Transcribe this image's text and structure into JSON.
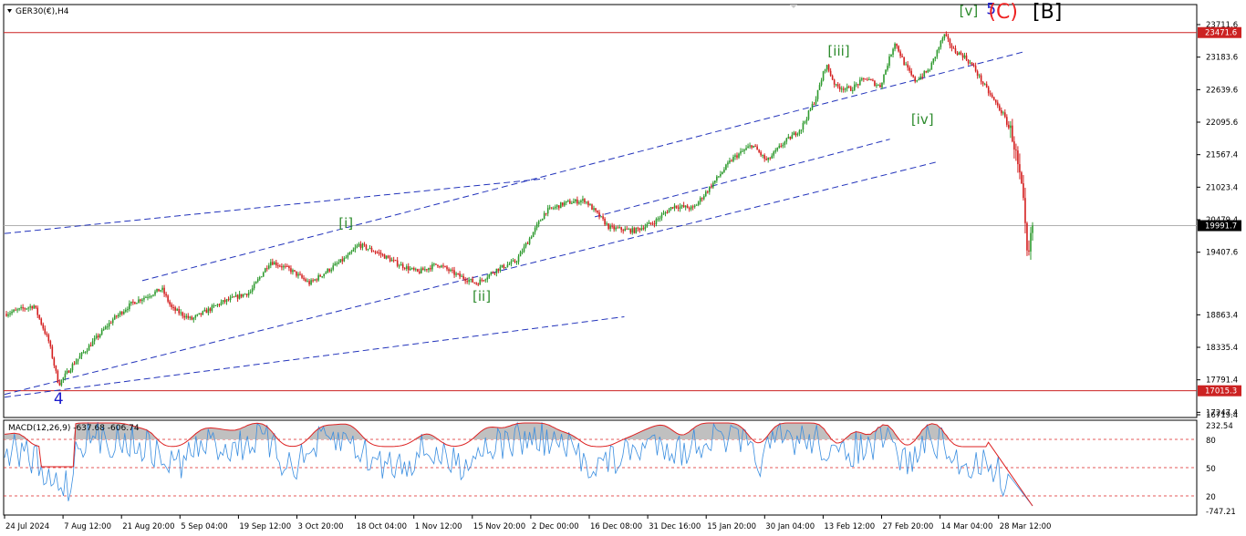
{
  "colors": {
    "bull": "#2e9a2e",
    "bear": "#d42020",
    "trend": "#2233bb",
    "hline": "#cc2222",
    "current_line": "#b0b0b0",
    "macd_line": "#3a8ee0",
    "signal_line": "#dd2222",
    "macd_hist": "#c0c0c0",
    "wave_green": "#2e8b2e",
    "wave_blue": "#1a1acc",
    "wave_red": "#ee2222"
  },
  "chart_data": [
    {
      "type": "candlestick",
      "title": "GER30(€),H4",
      "ylim": [
        16550,
        23960
      ],
      "x_ticks": [
        "24 Jul 2024",
        "7 Aug 12:00",
        "21 Aug 20:00",
        "5 Sep 04:00",
        "19 Sep 12:00",
        "3 Oct 20:00",
        "18 Oct 04:00",
        "1 Nov 12:00",
        "15 Nov 20:00",
        "2 Dec 00:00",
        "16 Dec 08:00",
        "31 Dec 16:00",
        "15 Jan 20:00",
        "30 Jan 04:00",
        "13 Feb 12:00",
        "27 Feb 20:00",
        "14 Mar 04:00",
        "28 Mar 12:00"
      ],
      "y_ticks": [
        "23711.6",
        "23183.6",
        "22639.6",
        "22095.6",
        "21567.4",
        "21023.4",
        "20479.4",
        "19407.6",
        "18863.4",
        "18335.4",
        "17791.4",
        "17247.4",
        "16719.4"
      ],
      "price_tags": [
        {
          "label": "23471.6",
          "value": 23471.6,
          "color": "#cc2222"
        },
        {
          "label": "19991.7",
          "value": 19991.7,
          "color": "#000000"
        },
        {
          "label": "17015.3",
          "value": 17015.3,
          "color": "#cc2222"
        }
      ],
      "horizontal_lines": [
        {
          "value": 23471.6,
          "color": "#cc2222"
        },
        {
          "value": 19991.7,
          "color": "#b0b0b0"
        },
        {
          "value": 17015.3,
          "color": "#cc2222"
        }
      ],
      "path_points": [
        {
          "t": 0.0,
          "v": 18400
        },
        {
          "t": 0.03,
          "v": 18550
        },
        {
          "t": 0.045,
          "v": 17900
        },
        {
          "t": 0.055,
          "v": 17130
        },
        {
          "t": 0.07,
          "v": 17500
        },
        {
          "t": 0.09,
          "v": 17900
        },
        {
          "t": 0.11,
          "v": 18300
        },
        {
          "t": 0.13,
          "v": 18600
        },
        {
          "t": 0.16,
          "v": 18850
        },
        {
          "t": 0.17,
          "v": 18500
        },
        {
          "t": 0.19,
          "v": 18300
        },
        {
          "t": 0.22,
          "v": 18600
        },
        {
          "t": 0.25,
          "v": 18800
        },
        {
          "t": 0.27,
          "v": 19350
        },
        {
          "t": 0.29,
          "v": 19200
        },
        {
          "t": 0.31,
          "v": 18950
        },
        {
          "t": 0.33,
          "v": 19200
        },
        {
          "t": 0.35,
          "v": 19450
        },
        {
          "t": 0.36,
          "v": 19650
        },
        {
          "t": 0.38,
          "v": 19500
        },
        {
          "t": 0.4,
          "v": 19300
        },
        {
          "t": 0.42,
          "v": 19150
        },
        {
          "t": 0.44,
          "v": 19300
        },
        {
          "t": 0.46,
          "v": 19100
        },
        {
          "t": 0.48,
          "v": 18950
        },
        {
          "t": 0.5,
          "v": 19200
        },
        {
          "t": 0.52,
          "v": 19350
        },
        {
          "t": 0.535,
          "v": 19800
        },
        {
          "t": 0.55,
          "v": 20250
        },
        {
          "t": 0.57,
          "v": 20400
        },
        {
          "t": 0.59,
          "v": 20450
        },
        {
          "t": 0.605,
          "v": 20150
        },
        {
          "t": 0.615,
          "v": 19950
        },
        {
          "t": 0.64,
          "v": 19900
        },
        {
          "t": 0.66,
          "v": 20050
        },
        {
          "t": 0.68,
          "v": 20350
        },
        {
          "t": 0.7,
          "v": 20300
        },
        {
          "t": 0.72,
          "v": 20750
        },
        {
          "t": 0.74,
          "v": 21200
        },
        {
          "t": 0.76,
          "v": 21450
        },
        {
          "t": 0.775,
          "v": 21150
        },
        {
          "t": 0.79,
          "v": 21450
        },
        {
          "t": 0.81,
          "v": 21750
        },
        {
          "t": 0.825,
          "v": 22300
        },
        {
          "t": 0.835,
          "v": 22900
        },
        {
          "t": 0.845,
          "v": 22500
        },
        {
          "t": 0.86,
          "v": 22450
        },
        {
          "t": 0.875,
          "v": 22650
        },
        {
          "t": 0.89,
          "v": 22500
        },
        {
          "t": 0.905,
          "v": 23300
        },
        {
          "t": 0.915,
          "v": 22900
        },
        {
          "t": 0.925,
          "v": 22600
        },
        {
          "t": 0.94,
          "v": 22800
        },
        {
          "t": 0.955,
          "v": 23430
        },
        {
          "t": 0.965,
          "v": 23150
        },
        {
          "t": 0.975,
          "v": 23050
        },
        {
          "t": 0.985,
          "v": 22850
        },
        {
          "t": 0.993,
          "v": 22600
        },
        {
          "t": 1.0,
          "v": 22400
        },
        {
          "t": 1.015,
          "v": 22000
        },
        {
          "t": 1.025,
          "v": 21600
        },
        {
          "t": 1.035,
          "v": 20500
        },
        {
          "t": 1.04,
          "v": 19300
        },
        {
          "t": 1.045,
          "v": 19990
        }
      ],
      "trendlines": [
        {
          "p1": [
            0.0,
            19850
          ],
          "p2": [
            0.55,
            20840
          ]
        },
        {
          "p1": [
            0.14,
            19000
          ],
          "p2": [
            1.035,
            23120
          ]
        },
        {
          "p1": [
            0.0,
            16950
          ],
          "p2": [
            0.95,
            21150
          ]
        },
        {
          "p1": [
            0.0,
            16900
          ],
          "p2": [
            0.63,
            18350
          ]
        },
        {
          "p1": [
            0.6,
            20150
          ],
          "p2": [
            0.9,
            21550
          ]
        }
      ],
      "wave_labels": [
        {
          "text": "[i]",
          "t": 0.347,
          "v": 19950,
          "color": "#2e8b2e"
        },
        {
          "text": "[ii]",
          "t": 0.485,
          "v": 18640,
          "color": "#2e8b2e"
        },
        {
          "text": "[iii]",
          "t": 0.848,
          "v": 23060,
          "color": "#2e8b2e"
        },
        {
          "text": "[iv]",
          "t": 0.933,
          "v": 21820,
          "color": "#2e8b2e"
        },
        {
          "text": "[v]",
          "t": 0.98,
          "v": 23780,
          "color": "#2e8b2e"
        },
        {
          "text": "4",
          "t": 0.055,
          "v": 16780,
          "color": "#1a1acc"
        },
        {
          "text": "5",
          "t": 1.003,
          "v": 23800,
          "color": "#1a1acc"
        },
        {
          "text": "(C)",
          "t": 1.015,
          "v": 23730,
          "color": "#ee2222"
        },
        {
          "text": "[B]",
          "t": 1.06,
          "v": 23730,
          "color": "#000000"
        }
      ]
    },
    {
      "type": "line",
      "title": "MACD(12,26,9) -637.68 -606.74",
      "series": [
        {
          "name": "MACD",
          "color": "#3a8ee0"
        },
        {
          "name": "Signal",
          "color": "#dd2222"
        }
      ],
      "y_ticks": [
        "232.54",
        "80",
        "50",
        "20",
        "-747.21"
      ],
      "levels": [
        80,
        50,
        20
      ]
    }
  ]
}
